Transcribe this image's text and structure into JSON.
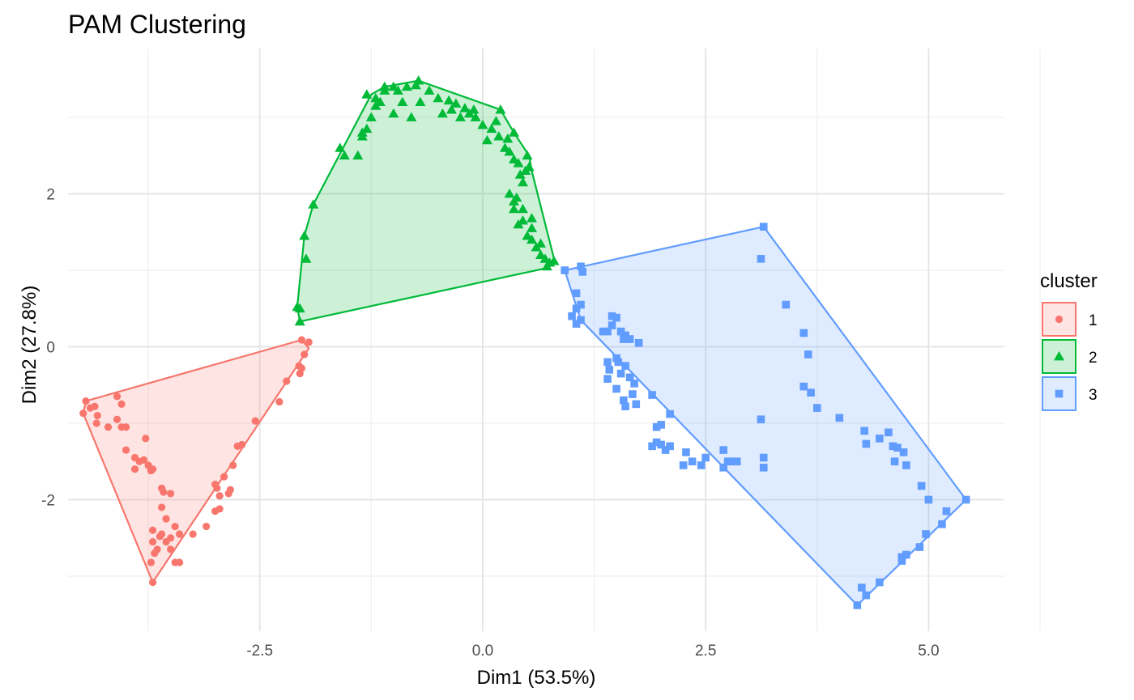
{
  "chart_data": {
    "type": "scatter",
    "title": "PAM Clustering",
    "xlabel": "Dim1 (53.5%)",
    "ylabel": "Dim2 (27.8%)",
    "xlim": [
      -4.65,
      5.85
    ],
    "ylim": [
      -3.72,
      3.9
    ],
    "x_ticks": [
      -2.5,
      0.0,
      2.5,
      5.0
    ],
    "x_tick_labels": [
      "-2.5",
      "0.0",
      "2.5",
      "5.0"
    ],
    "y_ticks": [
      -2,
      0,
      2
    ],
    "y_tick_labels": [
      "-2",
      "0",
      "2"
    ],
    "grid": true,
    "legend": {
      "title": "cluster",
      "position": "right",
      "entries": [
        {
          "label": "1",
          "shape": "circle",
          "color": "#F8766D"
        },
        {
          "label": "2",
          "shape": "triangle",
          "color": "#00BA38"
        },
        {
          "label": "3",
          "shape": "square",
          "color": "#619CFF"
        }
      ]
    },
    "series": [
      {
        "name": "1",
        "shape": "circle",
        "color": "#F8766D",
        "hull": [
          [
            -4.45,
            -0.71
          ],
          [
            -2.03,
            0.09
          ],
          [
            -1.95,
            -0.02
          ],
          [
            -3.7,
            -3.08
          ],
          [
            -4.48,
            -0.87
          ]
        ],
        "points": [
          [
            -4.45,
            -0.71
          ],
          [
            -4.4,
            -0.8
          ],
          [
            -4.48,
            -0.87
          ],
          [
            -4.35,
            -0.78
          ],
          [
            -4.32,
            -0.9
          ],
          [
            -4.33,
            -1.0
          ],
          [
            -4.2,
            -1.05
          ],
          [
            -4.1,
            -0.65
          ],
          [
            -4.05,
            -0.75
          ],
          [
            -4.1,
            -0.95
          ],
          [
            -4.05,
            -1.05
          ],
          [
            -4.0,
            -1.05
          ],
          [
            -4.0,
            -1.35
          ],
          [
            -3.9,
            -1.45
          ],
          [
            -3.85,
            -1.5
          ],
          [
            -3.8,
            -1.48
          ],
          [
            -3.75,
            -1.55
          ],
          [
            -3.7,
            -1.6
          ],
          [
            -3.72,
            -1.62
          ],
          [
            -3.9,
            -1.6
          ],
          [
            -3.78,
            -1.2
          ],
          [
            -3.6,
            -1.85
          ],
          [
            -3.58,
            -1.9
          ],
          [
            -3.5,
            -1.92
          ],
          [
            -3.6,
            -2.1
          ],
          [
            -3.55,
            -2.25
          ],
          [
            -3.6,
            -2.45
          ],
          [
            -3.5,
            -2.5
          ],
          [
            -3.45,
            -2.35
          ],
          [
            -3.7,
            -2.55
          ],
          [
            -3.65,
            -2.65
          ],
          [
            -3.62,
            -2.48
          ],
          [
            -3.55,
            -2.55
          ],
          [
            -3.5,
            -2.65
          ],
          [
            -3.7,
            -2.4
          ],
          [
            -3.68,
            -2.7
          ],
          [
            -3.72,
            -2.82
          ],
          [
            -3.7,
            -3.08
          ],
          [
            -3.45,
            -2.82
          ],
          [
            -3.4,
            -2.82
          ],
          [
            -3.4,
            -2.45
          ],
          [
            -3.25,
            -2.45
          ],
          [
            -3.1,
            -2.35
          ],
          [
            -3.0,
            -2.15
          ],
          [
            -2.95,
            -2.12
          ],
          [
            -3.0,
            -1.8
          ],
          [
            -2.98,
            -1.85
          ],
          [
            -2.95,
            -1.95
          ],
          [
            -2.9,
            -1.7
          ],
          [
            -2.85,
            -1.92
          ],
          [
            -2.83,
            -1.87
          ],
          [
            -2.8,
            -1.55
          ],
          [
            -2.75,
            -1.3
          ],
          [
            -2.7,
            -1.28
          ],
          [
            -2.55,
            -0.97
          ],
          [
            -2.28,
            -0.72
          ],
          [
            -2.2,
            -0.45
          ],
          [
            -2.05,
            -0.35
          ],
          [
            -2.06,
            -0.25
          ],
          [
            -2.03,
            -0.28
          ],
          [
            -2.03,
            0.09
          ],
          [
            -1.95,
            0.06
          ],
          [
            -2.0,
            -0.1
          ]
        ]
      },
      {
        "name": "2",
        "shape": "triangle",
        "color": "#00BA38",
        "hull": [
          [
            -2.05,
            0.33
          ],
          [
            -2.08,
            0.52
          ],
          [
            -2.0,
            1.45
          ],
          [
            -1.9,
            1.86
          ],
          [
            -1.25,
            3.3
          ],
          [
            -1.1,
            3.4
          ],
          [
            -0.72,
            3.48
          ],
          [
            0.2,
            3.1
          ],
          [
            0.35,
            2.8
          ],
          [
            0.52,
            2.5
          ],
          [
            0.55,
            2.3
          ],
          [
            0.8,
            1.15
          ],
          [
            0.72,
            1.03
          ]
        ],
        "points": [
          [
            -2.05,
            0.33
          ],
          [
            -2.08,
            0.52
          ],
          [
            -2.05,
            0.5
          ],
          [
            -1.98,
            1.15
          ],
          [
            -2.0,
            1.45
          ],
          [
            -1.9,
            1.86
          ],
          [
            -1.55,
            2.5
          ],
          [
            -1.6,
            2.6
          ],
          [
            -1.4,
            2.5
          ],
          [
            -1.35,
            2.75
          ],
          [
            -1.3,
            2.85
          ],
          [
            -1.35,
            2.8
          ],
          [
            -1.25,
            3.0
          ],
          [
            -1.2,
            3.15
          ],
          [
            -1.15,
            3.2
          ],
          [
            -1.3,
            3.3
          ],
          [
            -1.2,
            3.25
          ],
          [
            -1.1,
            3.35
          ],
          [
            -1.1,
            3.4
          ],
          [
            -1.0,
            3.4
          ],
          [
            -0.95,
            3.35
          ],
          [
            -0.9,
            3.2
          ],
          [
            -1.0,
            3.05
          ],
          [
            -0.85,
            3.4
          ],
          [
            -0.75,
            3.42
          ],
          [
            -0.72,
            3.48
          ],
          [
            -0.7,
            3.2
          ],
          [
            -0.8,
            3.0
          ],
          [
            -0.6,
            3.35
          ],
          [
            -0.5,
            3.25
          ],
          [
            -0.45,
            3.05
          ],
          [
            -0.35,
            3.1
          ],
          [
            -0.38,
            3.22
          ],
          [
            -0.3,
            3.18
          ],
          [
            -0.25,
            3.0
          ],
          [
            -0.2,
            3.12
          ],
          [
            -0.15,
            3.05
          ],
          [
            -0.1,
            3.1
          ],
          [
            -0.08,
            3.0
          ],
          [
            0.0,
            2.9
          ],
          [
            0.05,
            2.7
          ],
          [
            0.1,
            2.85
          ],
          [
            0.15,
            2.95
          ],
          [
            0.2,
            3.1
          ],
          [
            0.18,
            2.75
          ],
          [
            0.25,
            2.6
          ],
          [
            0.28,
            2.72
          ],
          [
            0.3,
            2.55
          ],
          [
            0.35,
            2.8
          ],
          [
            0.35,
            2.45
          ],
          [
            0.4,
            2.4
          ],
          [
            0.42,
            2.25
          ],
          [
            0.45,
            2.15
          ],
          [
            0.48,
            2.3
          ],
          [
            0.5,
            2.5
          ],
          [
            0.52,
            2.35
          ],
          [
            0.3,
            2.0
          ],
          [
            0.35,
            1.9
          ],
          [
            0.38,
            1.95
          ],
          [
            0.35,
            1.8
          ],
          [
            0.4,
            1.6
          ],
          [
            0.45,
            1.65
          ],
          [
            0.5,
            1.45
          ],
          [
            0.55,
            1.55
          ],
          [
            0.55,
            1.4
          ],
          [
            0.6,
            1.3
          ],
          [
            0.65,
            1.35
          ],
          [
            0.65,
            1.2
          ],
          [
            0.7,
            1.15
          ],
          [
            0.72,
            1.05
          ],
          [
            0.75,
            1.1
          ],
          [
            0.8,
            1.12
          ],
          [
            0.55,
            1.68
          ],
          [
            0.45,
            1.8
          ]
        ]
      },
      {
        "name": "3",
        "shape": "square",
        "color": "#619CFF",
        "hull": [
          [
            0.92,
            1.0
          ],
          [
            3.15,
            1.57
          ],
          [
            5.42,
            -2.0
          ],
          [
            4.2,
            -3.38
          ],
          [
            1.1,
            0.35
          ]
        ],
        "points": [
          [
            3.15,
            1.57
          ],
          [
            3.12,
            1.15
          ],
          [
            3.4,
            0.55
          ],
          [
            3.6,
            0.18
          ],
          [
            3.65,
            -0.1
          ],
          [
            3.6,
            -0.52
          ],
          [
            3.68,
            -0.6
          ],
          [
            3.75,
            -0.8
          ],
          [
            3.12,
            -0.95
          ],
          [
            4.0,
            -0.93
          ],
          [
            4.28,
            -1.1
          ],
          [
            4.3,
            -1.27
          ],
          [
            4.45,
            -1.2
          ],
          [
            4.55,
            -1.12
          ],
          [
            4.6,
            -1.3
          ],
          [
            4.65,
            -1.32
          ],
          [
            4.72,
            -1.38
          ],
          [
            4.62,
            -1.5
          ],
          [
            4.75,
            -1.55
          ],
          [
            4.92,
            -1.82
          ],
          [
            5.0,
            -2.0
          ],
          [
            5.42,
            -2.0
          ],
          [
            5.2,
            -2.15
          ],
          [
            5.15,
            -2.32
          ],
          [
            4.97,
            -2.45
          ],
          [
            4.9,
            -2.62
          ],
          [
            4.75,
            -2.72
          ],
          [
            4.7,
            -2.75
          ],
          [
            4.7,
            -2.8
          ],
          [
            4.45,
            -3.08
          ],
          [
            4.3,
            -3.25
          ],
          [
            4.25,
            -3.15
          ],
          [
            4.2,
            -3.38
          ],
          [
            0.92,
            1.0
          ],
          [
            1.1,
            1.05
          ],
          [
            1.12,
            0.98
          ],
          [
            1.05,
            0.7
          ],
          [
            1.1,
            0.55
          ],
          [
            1.05,
            0.5
          ],
          [
            1.0,
            0.4
          ],
          [
            1.1,
            0.35
          ],
          [
            1.05,
            0.3
          ],
          [
            1.4,
            0.2
          ],
          [
            1.45,
            0.4
          ],
          [
            1.5,
            0.38
          ],
          [
            1.45,
            0.28
          ],
          [
            1.55,
            0.2
          ],
          [
            1.6,
            0.15
          ],
          [
            1.58,
            0.1
          ],
          [
            1.65,
            0.1
          ],
          [
            1.75,
            0.05
          ],
          [
            1.35,
            0.2
          ],
          [
            1.4,
            -0.2
          ],
          [
            1.5,
            -0.15
          ],
          [
            1.52,
            -0.2
          ],
          [
            1.42,
            -0.3
          ],
          [
            1.6,
            -0.25
          ],
          [
            1.55,
            -0.35
          ],
          [
            1.65,
            -0.4
          ],
          [
            1.4,
            -0.42
          ],
          [
            1.5,
            -0.55
          ],
          [
            1.7,
            -0.48
          ],
          [
            1.68,
            -0.62
          ],
          [
            1.58,
            -0.7
          ],
          [
            1.72,
            -0.75
          ],
          [
            1.6,
            -0.78
          ],
          [
            1.9,
            -0.63
          ],
          [
            1.95,
            -1.05
          ],
          [
            2.0,
            -1.02
          ],
          [
            2.1,
            -0.88
          ],
          [
            1.95,
            -1.25
          ],
          [
            1.9,
            -1.3
          ],
          [
            2.05,
            -1.35
          ],
          [
            2.0,
            -1.28
          ],
          [
            2.1,
            -1.3
          ],
          [
            2.28,
            -1.38
          ],
          [
            2.25,
            -1.55
          ],
          [
            2.35,
            -1.5
          ],
          [
            2.45,
            -1.55
          ],
          [
            2.5,
            -1.45
          ],
          [
            2.7,
            -1.35
          ],
          [
            2.75,
            -1.5
          ],
          [
            2.7,
            -1.58
          ],
          [
            2.8,
            -1.5
          ],
          [
            2.85,
            -1.5
          ],
          [
            3.15,
            -1.45
          ],
          [
            3.15,
            -1.58
          ]
        ]
      }
    ]
  }
}
